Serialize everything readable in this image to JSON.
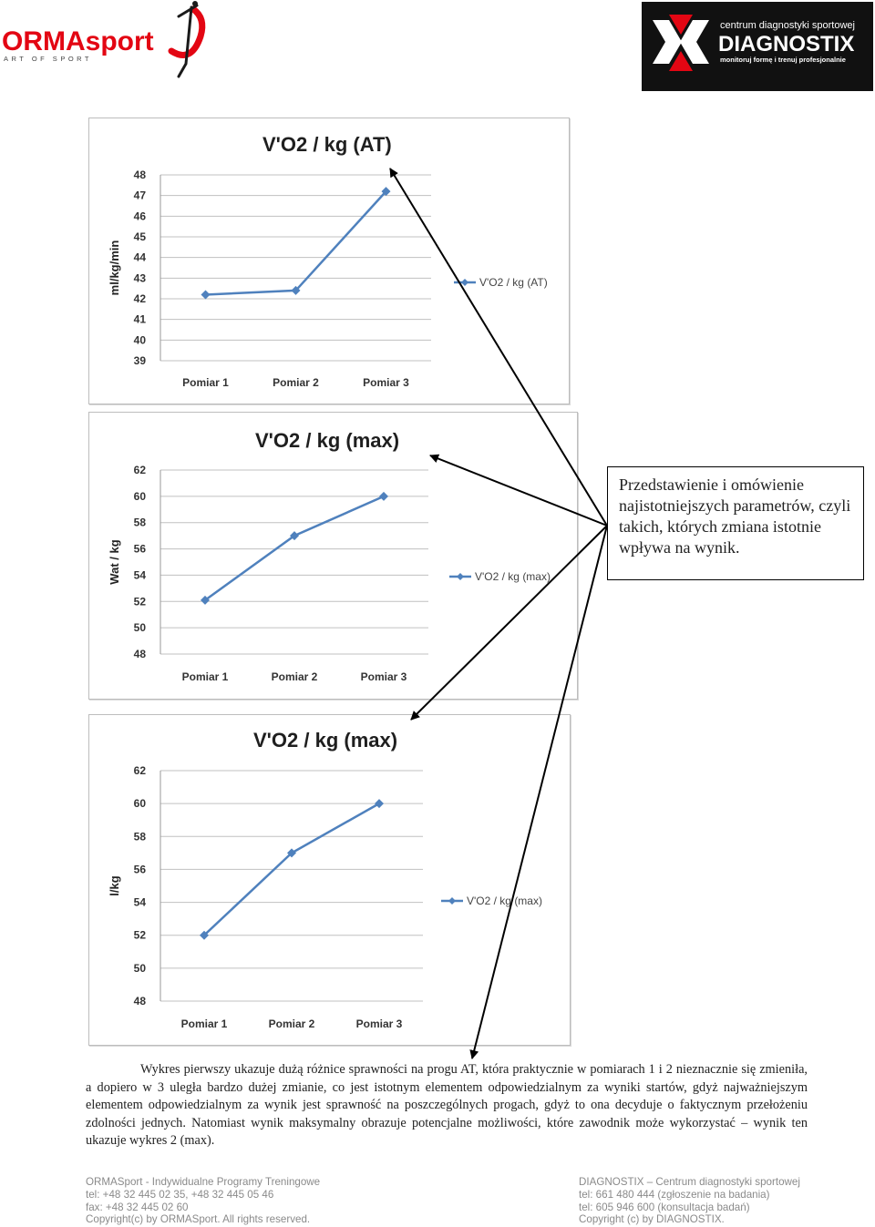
{
  "logos": {
    "left_brand": "ORMAsport",
    "left_tagline": "ART OF SPORT",
    "right_tagline_top": "centrum diagnostyki sportowej",
    "right_brand": "DIAGNOSTIX",
    "right_tagline_bottom": "monitoruj formę i trenuj profesjonalnie"
  },
  "callout": {
    "text": "Przedstawienie i omówienie najistotniejszych parametrów, czyli takich, których zmiana istotnie wpływa na wynik."
  },
  "body": {
    "paragraph": "Wykres pierwszy ukazuje dużą różnice sprawności na progu AT, która praktycznie w pomiarach 1 i 2 nieznacznie się zmieniła, a dopiero w 3 uległa bardzo dużej zmianie, co jest istotnym elementem odpowiedzialnym za wyniki startów, gdyż najważniejszym elementem odpowiedzialnym za wynik jest sprawność na poszczególnych progach, gdyż to ona decyduje o faktycznym przełożeniu zdolności jednych. Natomiast wynik maksymalny obrazuje potencjalne możliwości, które zawodnik może wykorzystać – wynik ten ukazuje wykres 2 (max)."
  },
  "footer": {
    "left": [
      "ORMASport - Indywidualne Programy Treningowe",
      "tel: +48 32 445 02 35, +48 32 445 05 46",
      "fax: +48 32 445 02 60",
      "Copyright(c) by ORMASport. All rights reserved."
    ],
    "right": [
      "DIAGNOSTIX – Centrum diagnostyki sportowej",
      "tel: 661 480 444 (zgłoszenie na badania)",
      "tel: 605 946 600 (konsultacja badań)",
      "Copyright (c) by DIAGNOSTIX."
    ]
  },
  "colors": {
    "series": "#4f81bd",
    "gridline": "#c0c0c0",
    "logo_red": "#e30613",
    "logo_dark": "#1a1a1a"
  },
  "chart_data": [
    {
      "type": "line",
      "title": "V'O2 / kg (AT)",
      "ylabel": "ml/kg/min",
      "xlabel": "",
      "categories": [
        "Pomiar 1",
        "Pomiar 2",
        "Pomiar 3"
      ],
      "series": [
        {
          "name": "V'O2 / kg (AT)",
          "values": [
            42.2,
            42.4,
            47.2
          ]
        }
      ],
      "ylim": [
        39,
        48
      ],
      "yticks": [
        39,
        40,
        41,
        42,
        43,
        44,
        45,
        46,
        47,
        48
      ],
      "grid": true,
      "legend": "right"
    },
    {
      "type": "line",
      "title": "V'O2 / kg (max)",
      "ylabel": "Wat / kg",
      "xlabel": "",
      "categories": [
        "Pomiar 1",
        "Pomiar 2",
        "Pomiar 3"
      ],
      "series": [
        {
          "name": "V'O2 / kg (max)",
          "values": [
            52.1,
            57.0,
            60.0
          ]
        }
      ],
      "ylim": [
        48,
        62
      ],
      "yticks": [
        48,
        50,
        52,
        54,
        56,
        58,
        60,
        62
      ],
      "grid": true,
      "legend": "right"
    },
    {
      "type": "line",
      "title": "V'O2 / kg (max)",
      "ylabel": "l/kg",
      "xlabel": "",
      "categories": [
        "Pomiar 1",
        "Pomiar 2",
        "Pomiar 3"
      ],
      "series": [
        {
          "name": "V'O2 / kg (max)",
          "values": [
            52.0,
            57.0,
            60.0
          ]
        }
      ],
      "ylim": [
        48,
        62
      ],
      "yticks": [
        48,
        50,
        52,
        54,
        56,
        58,
        60,
        62
      ],
      "grid": true,
      "legend": "right"
    }
  ]
}
